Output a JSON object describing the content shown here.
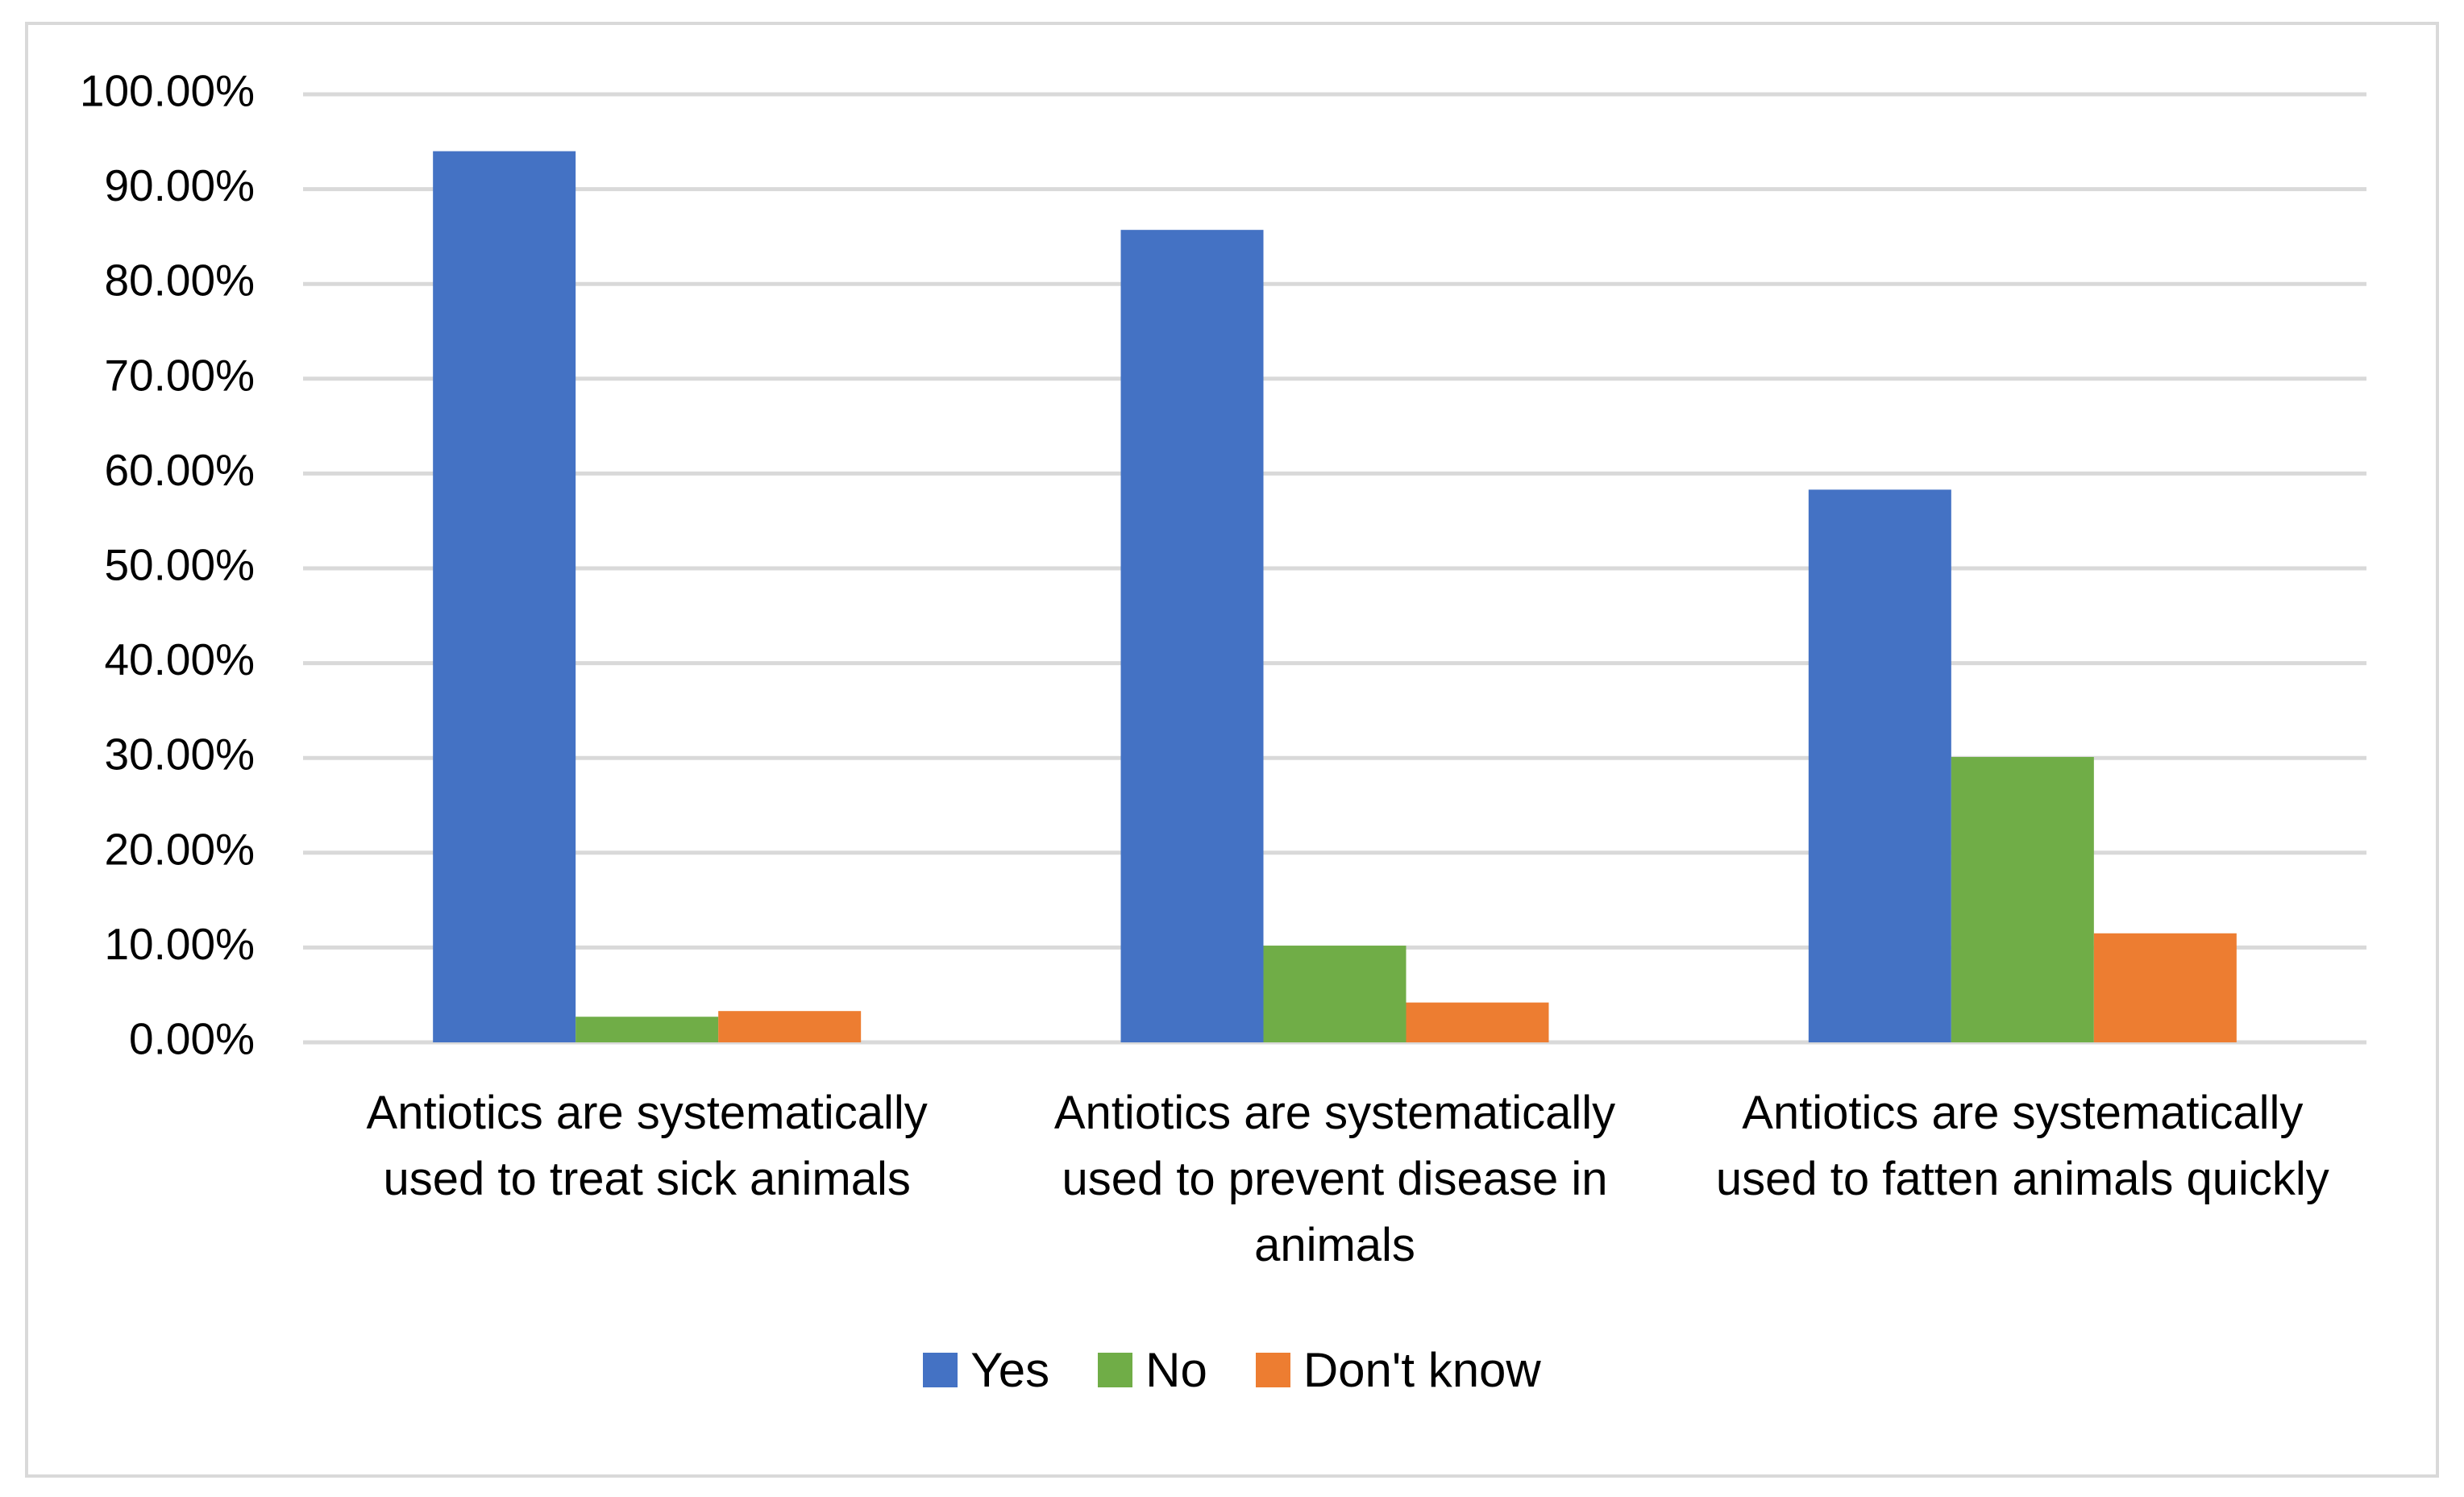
{
  "chart_data": {
    "type": "bar",
    "categories": [
      "Antiotics are systematically used to treat sick animals",
      "Antiotics are systematically used to prevent disease in animals",
      "Antiotics are systematically used to fatten animals quickly"
    ],
    "series": [
      {
        "name": "Yes",
        "color": "#4472c4",
        "values": [
          94.0,
          85.7,
          58.3
        ]
      },
      {
        "name": "No",
        "color": "#70ad47",
        "values": [
          2.7,
          10.2,
          30.1
        ]
      },
      {
        "name": "Don't know",
        "color": "#ed7d31",
        "values": [
          3.3,
          4.2,
          11.5
        ]
      }
    ],
    "ylim": [
      0,
      100
    ],
    "yticks": [
      {
        "value": 0,
        "label": "0.00%"
      },
      {
        "value": 10,
        "label": "10.00%"
      },
      {
        "value": 20,
        "label": "20.00%"
      },
      {
        "value": 30,
        "label": "30.00%"
      },
      {
        "value": 40,
        "label": "40.00%"
      },
      {
        "value": 50,
        "label": "50.00%"
      },
      {
        "value": 60,
        "label": "60.00%"
      },
      {
        "value": 70,
        "label": "70.00%"
      },
      {
        "value": 80,
        "label": "80.00%"
      },
      {
        "value": 90,
        "label": "90.00%"
      },
      {
        "value": 100,
        "label": "100.00%"
      }
    ],
    "grid": true,
    "legend": "bottom"
  }
}
